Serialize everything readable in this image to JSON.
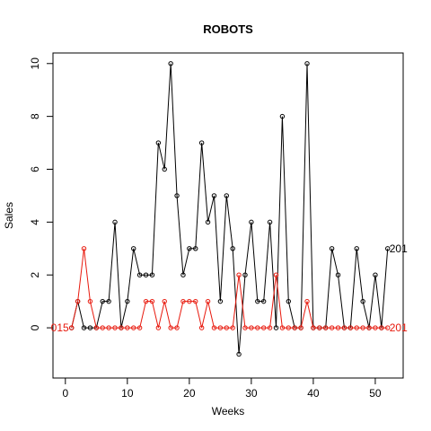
{
  "chart_data": {
    "type": "line",
    "title": "ROBOTS",
    "xlabel": "Weeks",
    "ylabel": "Sales",
    "xlim": [
      -2,
      54.5
    ],
    "ylim": [
      -1.9,
      10.4
    ],
    "x_ticks": [
      0,
      10,
      20,
      30,
      40,
      50
    ],
    "y_ticks": [
      0,
      2,
      4,
      6,
      8,
      10
    ],
    "grid": false,
    "legend": "none",
    "series": [
      {
        "color": "#000000",
        "x": [
          1,
          2,
          3,
          4,
          5,
          6,
          7,
          8,
          9,
          10,
          11,
          12,
          13,
          14,
          15,
          16,
          17,
          18,
          19,
          20,
          21,
          22,
          23,
          24,
          25,
          26,
          27,
          28,
          29,
          30,
          31,
          32,
          33,
          34,
          35,
          36,
          37,
          38,
          39,
          40,
          41,
          42,
          43,
          44,
          45,
          46,
          47,
          48,
          49,
          50,
          51,
          52
        ],
        "values": [
          0,
          1,
          0,
          0,
          0,
          1,
          1,
          4,
          0,
          1,
          3,
          2,
          2,
          2,
          7,
          6,
          10,
          5,
          2,
          3,
          3,
          7,
          4,
          5,
          1,
          5,
          3,
          -1,
          2,
          4,
          1,
          1,
          4,
          0,
          8,
          1,
          0,
          0,
          10,
          0,
          0,
          0,
          3,
          2,
          0,
          0,
          3,
          1,
          0,
          2,
          0,
          3
        ],
        "end_label": "201"
      },
      {
        "color": "#e8190d",
        "x": [
          1,
          2,
          3,
          4,
          5,
          6,
          7,
          8,
          9,
          10,
          11,
          12,
          13,
          14,
          15,
          16,
          17,
          18,
          19,
          20,
          21,
          22,
          23,
          24,
          25,
          26,
          27,
          28,
          29,
          30,
          31,
          32,
          33,
          34,
          35,
          36,
          37,
          38,
          39,
          40,
          41,
          42,
          43,
          44,
          45,
          46,
          47,
          48,
          49,
          50,
          51,
          52
        ],
        "values": [
          0,
          1,
          3,
          1,
          0,
          0,
          0,
          0,
          0,
          0,
          0,
          0,
          1,
          1,
          0,
          1,
          0,
          0,
          1,
          1,
          1,
          0,
          1,
          0,
          0,
          0,
          0,
          2,
          0,
          0,
          0,
          0,
          0,
          2,
          0,
          0,
          0,
          0,
          1,
          0,
          0,
          0,
          0,
          0,
          0,
          0,
          0,
          0,
          0,
          0,
          0,
          0
        ],
        "start_label": "015",
        "end_label": "201"
      }
    ]
  }
}
